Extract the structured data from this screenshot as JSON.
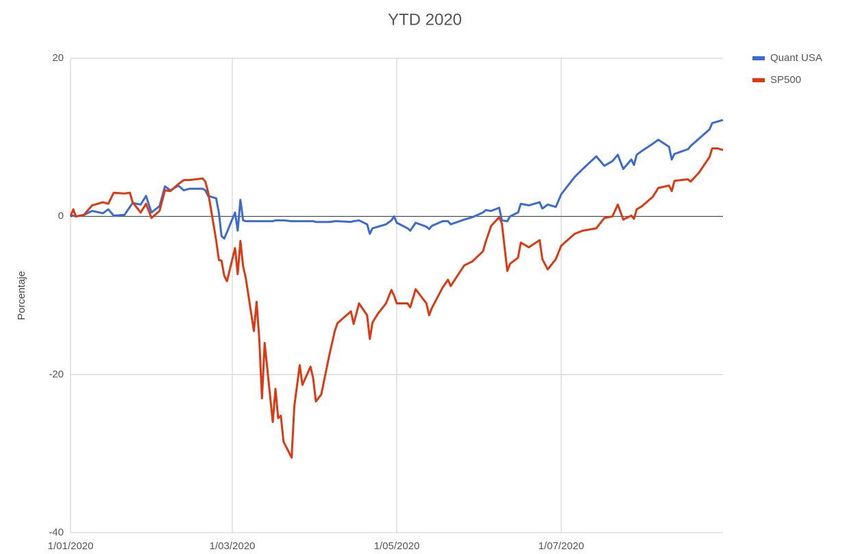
{
  "chart_data": {
    "type": "line",
    "title": "YTD 2020",
    "y_label": "Porcentaje",
    "x": [
      "2020-01-01",
      "2020-01-02",
      "2020-01-03",
      "2020-01-06",
      "2020-01-09",
      "2020-01-13",
      "2020-01-15",
      "2020-01-17",
      "2020-01-21",
      "2020-01-23",
      "2020-01-24",
      "2020-01-27",
      "2020-01-29",
      "2020-01-31",
      "2020-02-03",
      "2020-02-05",
      "2020-02-07",
      "2020-02-10",
      "2020-02-12",
      "2020-02-14",
      "2020-02-19",
      "2020-02-20",
      "2020-02-21",
      "2020-02-24",
      "2020-02-25",
      "2020-02-26",
      "2020-02-27",
      "2020-02-28",
      "2020-03-02",
      "2020-03-03",
      "2020-03-04",
      "2020-03-05",
      "2020-03-06",
      "2020-03-09",
      "2020-03-10",
      "2020-03-11",
      "2020-03-12",
      "2020-03-13",
      "2020-03-16",
      "2020-03-17",
      "2020-03-18",
      "2020-03-19",
      "2020-03-20",
      "2020-03-23",
      "2020-03-24",
      "2020-03-26",
      "2020-03-27",
      "2020-03-30",
      "2020-03-31",
      "2020-04-01",
      "2020-04-03",
      "2020-04-06",
      "2020-04-08",
      "2020-04-09",
      "2020-04-14",
      "2020-04-15",
      "2020-04-17",
      "2020-04-20",
      "2020-04-21",
      "2020-04-22",
      "2020-04-24",
      "2020-04-27",
      "2020-04-29",
      "2020-04-30",
      "2020-05-01",
      "2020-05-05",
      "2020-05-06",
      "2020-05-08",
      "2020-05-12",
      "2020-05-13",
      "2020-05-14",
      "2020-05-18",
      "2020-05-20",
      "2020-05-21",
      "2020-05-26",
      "2020-05-29",
      "2020-06-02",
      "2020-06-03",
      "2020-06-05",
      "2020-06-08",
      "2020-06-09",
      "2020-06-11",
      "2020-06-12",
      "2020-06-15",
      "2020-06-16",
      "2020-06-19",
      "2020-06-23",
      "2020-06-24",
      "2020-06-26",
      "2020-06-29",
      "2020-07-01",
      "2020-07-06",
      "2020-07-09",
      "2020-07-14",
      "2020-07-17",
      "2020-07-20",
      "2020-07-22",
      "2020-07-24",
      "2020-07-27",
      "2020-07-28",
      "2020-07-29",
      "2020-07-31",
      "2020-08-04",
      "2020-08-06",
      "2020-08-10",
      "2020-08-11",
      "2020-08-12",
      "2020-08-17",
      "2020-08-18",
      "2020-08-21",
      "2020-08-25",
      "2020-08-26",
      "2020-08-28",
      "2020-08-30"
    ],
    "series": [
      {
        "name": "Quant USA",
        "color": "#3c6bd0",
        "values": [
          0,
          0.1,
          0,
          0.2,
          0.7,
          0.4,
          0.9,
          0.1,
          0.2,
          1.2,
          1.7,
          1.5,
          2.6,
          0.5,
          1.3,
          3.8,
          3.3,
          3.9,
          3.3,
          3.5,
          3.5,
          3.3,
          2.6,
          2.3,
          0.5,
          -2.5,
          -2.8,
          -2.0,
          0.5,
          -1.8,
          2.1,
          -0.5,
          -0.6,
          -0.6,
          -0.6,
          -0.6,
          -0.6,
          -0.6,
          -0.6,
          -0.5,
          -0.5,
          -0.5,
          -0.5,
          -0.6,
          -0.6,
          -0.6,
          -0.6,
          -0.6,
          -0.6,
          -0.7,
          -0.7,
          -0.7,
          -0.6,
          -0.6,
          -0.7,
          -0.6,
          -0.5,
          -1.0,
          -2.2,
          -1.5,
          -1.3,
          -1.0,
          -0.5,
          0.0,
          -0.8,
          -1.5,
          -1.8,
          -0.8,
          -1.3,
          -1.6,
          -1.2,
          -0.6,
          -0.6,
          -1.0,
          -0.4,
          -0.1,
          0.5,
          0.8,
          0.7,
          1.1,
          -0.5,
          -0.6,
          0.0,
          0.5,
          1.6,
          1.4,
          1.8,
          1.0,
          1.5,
          1.2,
          2.8,
          5.0,
          6.0,
          7.6,
          6.4,
          7.0,
          7.8,
          6.0,
          7.2,
          6.5,
          7.8,
          8.3,
          9.2,
          9.7,
          8.8,
          7.2,
          7.9,
          8.5,
          8.9,
          9.8,
          11.0,
          11.8,
          12.0,
          12.2
        ]
      },
      {
        "name": "SP500",
        "color": "#dc3912",
        "values": [
          0,
          0.9,
          0,
          0.2,
          1.4,
          1.8,
          1.6,
          3.0,
          2.9,
          3.0,
          1.8,
          0.5,
          1.6,
          -0.2,
          0.7,
          3.3,
          3.2,
          4.1,
          4.6,
          4.6,
          4.8,
          4.4,
          3.1,
          -3.0,
          -5.5,
          -5.6,
          -7.5,
          -8.2,
          -4.0,
          -7.3,
          -3.1,
          -6.3,
          -7.8,
          -14.5,
          -10.8,
          -15.5,
          -23.0,
          -16.0,
          -26.0,
          -21.8,
          -25.5,
          -25.2,
          -28.5,
          -30.5,
          -24.0,
          -18.8,
          -21.3,
          -19.0,
          -20.5,
          -23.4,
          -22.5,
          -17.5,
          -14.5,
          -13.5,
          -12.0,
          -13.6,
          -11.0,
          -12.5,
          -15.5,
          -13.4,
          -12.3,
          -11.0,
          -9.3,
          -10.0,
          -11.0,
          -11.0,
          -11.5,
          -9.2,
          -11.0,
          -12.5,
          -11.6,
          -9.0,
          -8.0,
          -8.8,
          -6.2,
          -5.7,
          -4.4,
          -3.2,
          -1.2,
          -0.1,
          -0.9,
          -6.9,
          -6.0,
          -5.2,
          -3.3,
          -3.9,
          -3.0,
          -5.4,
          -6.7,
          -5.4,
          -3.7,
          -2.2,
          -1.8,
          -1.5,
          -0.2,
          0.0,
          1.5,
          -0.4,
          0.1,
          -0.3,
          0.9,
          1.3,
          2.5,
          3.6,
          3.9,
          3.2,
          4.5,
          4.7,
          4.4,
          5.5,
          7.5,
          8.6,
          8.6,
          8.4
        ]
      }
    ],
    "xlim": [
      "2020-01-01",
      "2020-08-30"
    ],
    "xticks": [
      {
        "value": "2020-01-01",
        "label": "1/01/2020"
      },
      {
        "value": "2020-03-01",
        "label": "1/03/2020"
      },
      {
        "value": "2020-05-01",
        "label": "1/05/2020"
      },
      {
        "value": "2020-07-01",
        "label": "1/07/2020"
      }
    ],
    "ylim": [
      -40,
      20
    ],
    "yticks": [
      -40,
      -20,
      0,
      20
    ],
    "grid": true,
    "legend": "right"
  }
}
